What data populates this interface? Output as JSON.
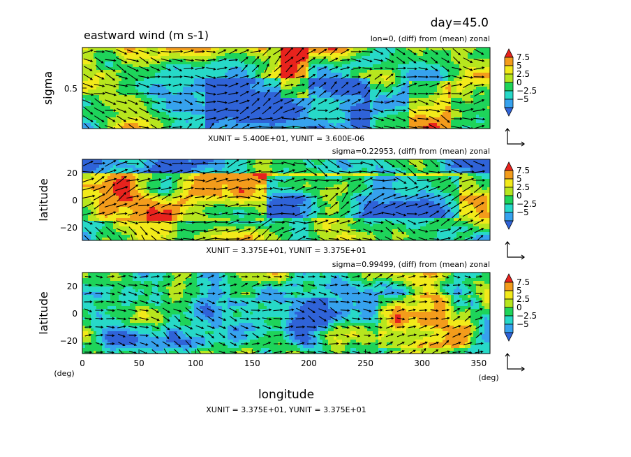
{
  "header": {
    "time_label": "day=45.0",
    "variable_title": "eastward wind (m s-1)"
  },
  "colors": {
    "levels": [
      "#2f63d8",
      "#36a2ee",
      "#27d9c8",
      "#1ed45a",
      "#b7e61e",
      "#f2ea1a",
      "#f39c1b",
      "#e8231d"
    ],
    "vector": "#000000"
  },
  "chart_data": [
    {
      "type": "heatmap",
      "panel": "top",
      "title": "lon=0, (diff) from (mean) zonal",
      "xlabel": "",
      "ylabel": "sigma",
      "y_ticks": [
        "0.5"
      ],
      "overlay": "vectors",
      "vector_units": "XUNIT = 5.400E+01, YUNIT = 3.600E-06",
      "colorbar": {
        "tick_labels": [
          "7.5",
          "5",
          "2.5",
          "0",
          "−2.5",
          "−5"
        ]
      }
    },
    {
      "type": "heatmap",
      "panel": "middle",
      "title": "sigma=0.22953, (diff) from (mean) zonal",
      "xlabel": "",
      "ylabel": "latitude",
      "y_ticks": [
        "20",
        "0",
        "−20"
      ],
      "overlay": "vectors",
      "vector_units": "XUNIT = 3.375E+01, YUNIT = 3.375E+01",
      "colorbar": {
        "tick_labels": [
          "7.5",
          "5",
          "2.5",
          "0",
          "−2.5",
          "−5"
        ]
      }
    },
    {
      "type": "heatmap",
      "panel": "bottom",
      "title": "sigma=0.99499, (diff) from (mean) zonal",
      "xlabel": "longitude",
      "ylabel": "latitude",
      "x_ticks": [
        "0",
        "50",
        "100",
        "150",
        "200",
        "250",
        "300",
        "350"
      ],
      "y_ticks": [
        "20",
        "0",
        "−20"
      ],
      "x_unit": "(deg)",
      "y_unit": "(deg)",
      "overlay": "vectors",
      "vector_units": "XUNIT = 3.375E+01, YUNIT = 3.375E+01",
      "colorbar": {
        "tick_labels": [
          "7.5",
          "5",
          "2.5",
          "0",
          "−2.5",
          "−5"
        ]
      }
    }
  ]
}
